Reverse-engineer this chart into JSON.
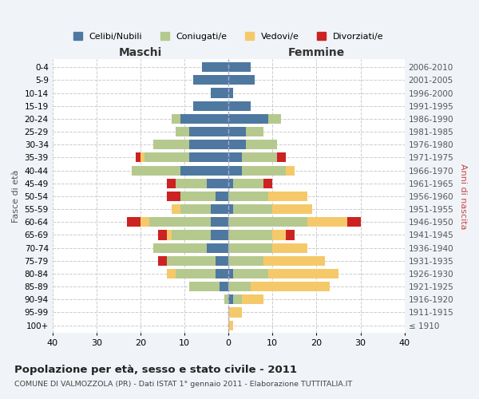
{
  "age_groups": [
    "100+",
    "95-99",
    "90-94",
    "85-89",
    "80-84",
    "75-79",
    "70-74",
    "65-69",
    "60-64",
    "55-59",
    "50-54",
    "45-49",
    "40-44",
    "35-39",
    "30-34",
    "25-29",
    "20-24",
    "15-19",
    "10-14",
    "5-9",
    "0-4"
  ],
  "birth_years": [
    "≤ 1910",
    "1911-1915",
    "1916-1920",
    "1921-1925",
    "1926-1930",
    "1931-1935",
    "1936-1940",
    "1941-1945",
    "1946-1950",
    "1951-1955",
    "1956-1960",
    "1961-1965",
    "1966-1970",
    "1971-1975",
    "1976-1980",
    "1981-1985",
    "1986-1990",
    "1991-1995",
    "1996-2000",
    "2001-2005",
    "2006-2010"
  ],
  "colors": {
    "celibi": "#4e78a0",
    "coniugati": "#b5c98e",
    "vedovi": "#f5c96a",
    "divorziati": "#cc2222"
  },
  "maschi": {
    "celibi": [
      0,
      0,
      0,
      2,
      3,
      3,
      5,
      4,
      4,
      4,
      3,
      5,
      11,
      9,
      9,
      9,
      11,
      8,
      4,
      8,
      6
    ],
    "coniugati": [
      0,
      0,
      1,
      7,
      9,
      11,
      12,
      9,
      14,
      7,
      8,
      7,
      11,
      10,
      8,
      3,
      2,
      0,
      0,
      0,
      0
    ],
    "vedovi": [
      0,
      0,
      0,
      0,
      2,
      0,
      0,
      1,
      2,
      2,
      0,
      0,
      0,
      1,
      0,
      0,
      0,
      0,
      0,
      0,
      0
    ],
    "divorziati": [
      0,
      0,
      0,
      0,
      0,
      2,
      0,
      2,
      3,
      0,
      3,
      2,
      0,
      1,
      0,
      0,
      0,
      0,
      0,
      0,
      0
    ]
  },
  "femmine": {
    "nubili": [
      0,
      0,
      1,
      0,
      1,
      0,
      0,
      0,
      0,
      1,
      0,
      1,
      3,
      3,
      4,
      4,
      9,
      5,
      1,
      6,
      5
    ],
    "coniugate": [
      0,
      0,
      2,
      5,
      8,
      8,
      10,
      10,
      18,
      9,
      9,
      7,
      10,
      8,
      7,
      4,
      3,
      0,
      0,
      0,
      0
    ],
    "vedove": [
      1,
      3,
      5,
      18,
      16,
      14,
      8,
      3,
      9,
      9,
      9,
      0,
      2,
      0,
      0,
      0,
      0,
      0,
      0,
      0,
      0
    ],
    "divorziate": [
      0,
      0,
      0,
      0,
      0,
      0,
      0,
      2,
      3,
      0,
      0,
      2,
      0,
      2,
      0,
      0,
      0,
      0,
      0,
      0,
      0
    ]
  },
  "title": "Popolazione per età, sesso e stato civile - 2011",
  "subtitle": "COMUNE DI VALMOZZOLA (PR) - Dati ISTAT 1° gennaio 2011 - Elaborazione TUTTITALIA.IT",
  "xlabel_left": "Maschi",
  "xlabel_right": "Femmine",
  "ylabel_left": "Fasce di età",
  "ylabel_right": "Anni di nascita",
  "legend_labels": [
    "Celibi/Nubili",
    "Coniugati/e",
    "Vedovi/e",
    "Divorziati/e"
  ],
  "xlim": 40,
  "background_color": "#f0f4f8",
  "plot_bg": "#ffffff"
}
